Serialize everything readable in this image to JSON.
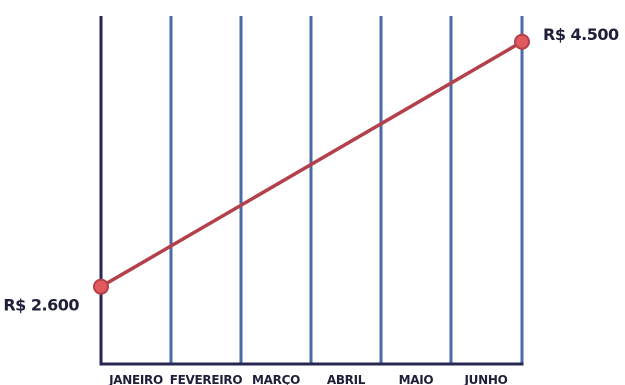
{
  "chart_data": {
    "type": "line",
    "title": "",
    "xlabel": "",
    "ylabel": "",
    "categories": [
      "JANEIRO",
      "FEVEREIRO",
      "MARÇO",
      "ABRIL",
      "MAIO",
      "JUNHO"
    ],
    "x_range": [
      "start",
      "JUNHO"
    ],
    "series": [
      {
        "name": "",
        "points": [
          {
            "x": "start",
            "y": 2600,
            "label": "R$ 2.600"
          },
          {
            "x": "JUNHO",
            "y": 4500,
            "label": "R$ 4.500"
          }
        ]
      }
    ],
    "ylim": [
      2000,
      4700
    ],
    "grid": "vertical",
    "legend": "none",
    "colors": {
      "axis": "#262650",
      "gridline": "#4a6aa8",
      "line": "#b3404a",
      "marker_fill": "#e25a5e",
      "marker_stroke": "#b3404a",
      "text": "#1f1f3a"
    }
  }
}
